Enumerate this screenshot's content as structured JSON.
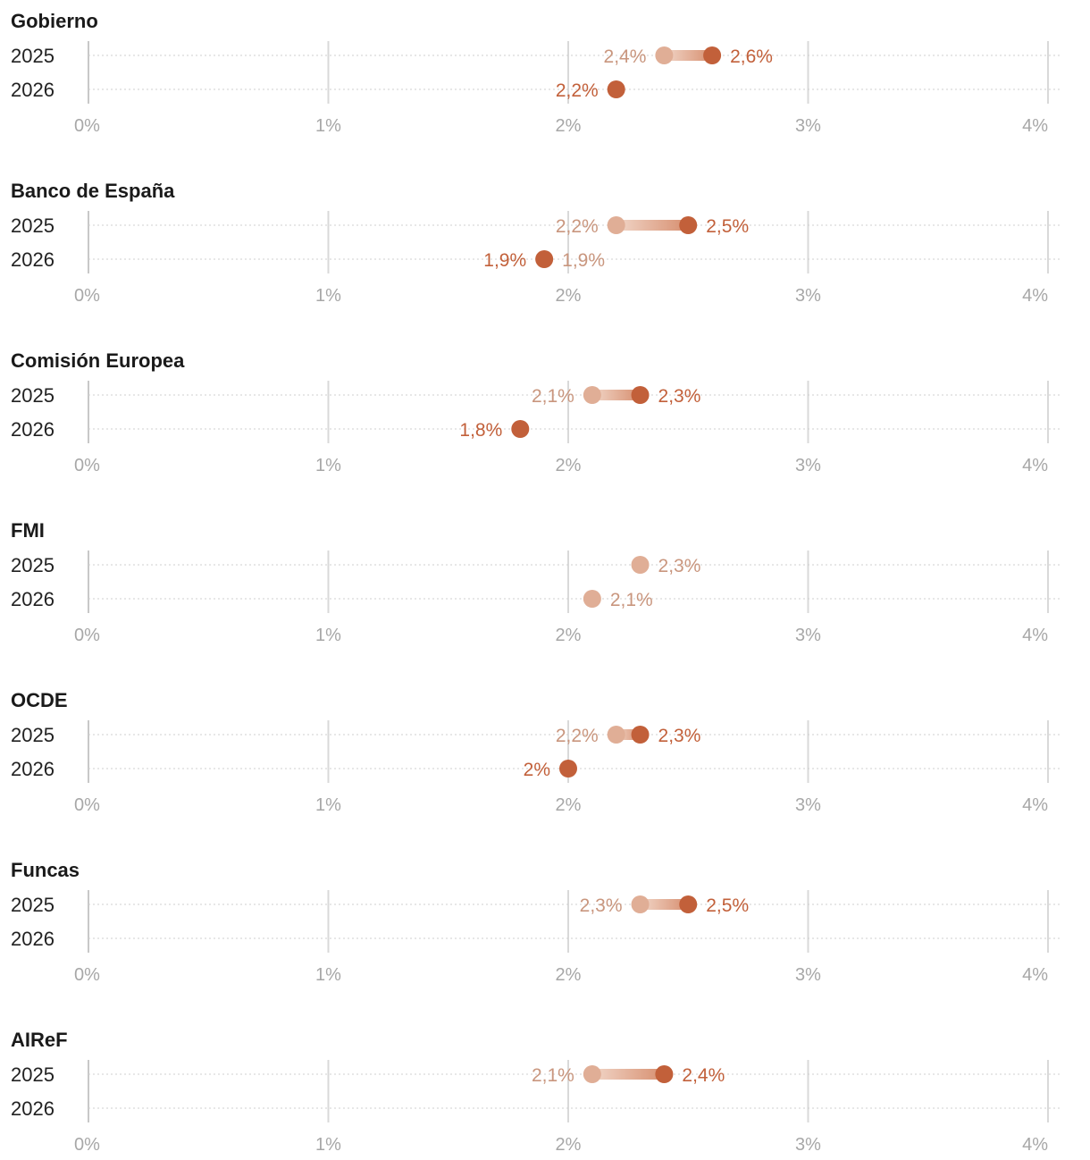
{
  "colors": {
    "old_estimate": "#e0ae96",
    "new_estimate": "#c2603a",
    "old_label": "#c9967e",
    "new_label": "#c2603a",
    "grid": "#d9d9d9"
  },
  "chart_data": {
    "type": "dumbbell",
    "x_axis": {
      "min": 0,
      "max": 4,
      "ticks": [
        0,
        1,
        2,
        3,
        4
      ],
      "tick_labels": [
        "0%",
        "1%",
        "2%",
        "3%",
        "4%"
      ]
    },
    "years": [
      "2025",
      "2026"
    ],
    "panels": [
      {
        "title": "Gobierno",
        "rows": [
          {
            "year": "2025",
            "old": 2.4,
            "old_label": "2,4%",
            "new": 2.6,
            "new_label": "2,6%"
          },
          {
            "year": "2026",
            "old": null,
            "old_label": null,
            "new": 2.2,
            "new_label": "2,2%"
          }
        ]
      },
      {
        "title": "Banco de España",
        "rows": [
          {
            "year": "2025",
            "old": 2.2,
            "old_label": "2,2%",
            "new": 2.5,
            "new_label": "2,5%"
          },
          {
            "year": "2026",
            "old": 1.9,
            "old_label": "1,9%",
            "new": 1.9,
            "new_label": "1,9%"
          }
        ]
      },
      {
        "title": "Comisión Europea",
        "rows": [
          {
            "year": "2025",
            "old": 2.1,
            "old_label": "2,1%",
            "new": 2.3,
            "new_label": "2,3%"
          },
          {
            "year": "2026",
            "old": null,
            "old_label": null,
            "new": 1.8,
            "new_label": "1,8%"
          }
        ]
      },
      {
        "title": "FMI",
        "rows": [
          {
            "year": "2025",
            "old": 2.3,
            "old_label": "2,3%",
            "new": null,
            "new_label": null
          },
          {
            "year": "2026",
            "old": 2.1,
            "old_label": "2,1%",
            "new": null,
            "new_label": null
          }
        ]
      },
      {
        "title": "OCDE",
        "rows": [
          {
            "year": "2025",
            "old": 2.2,
            "old_label": "2,2%",
            "new": 2.3,
            "new_label": "2,3%"
          },
          {
            "year": "2026",
            "old": null,
            "old_label": null,
            "new": 2.0,
            "new_label": "2%"
          }
        ]
      },
      {
        "title": "Funcas",
        "rows": [
          {
            "year": "2025",
            "old": 2.3,
            "old_label": "2,3%",
            "new": 2.5,
            "new_label": "2,5%"
          },
          {
            "year": "2026",
            "old": null,
            "old_label": null,
            "new": null,
            "new_label": null
          }
        ]
      },
      {
        "title": "AIReF",
        "rows": [
          {
            "year": "2025",
            "old": 2.1,
            "old_label": "2,1%",
            "new": 2.4,
            "new_label": "2,4%"
          },
          {
            "year": "2026",
            "old": null,
            "old_label": null,
            "new": null,
            "new_label": null
          }
        ]
      }
    ]
  }
}
